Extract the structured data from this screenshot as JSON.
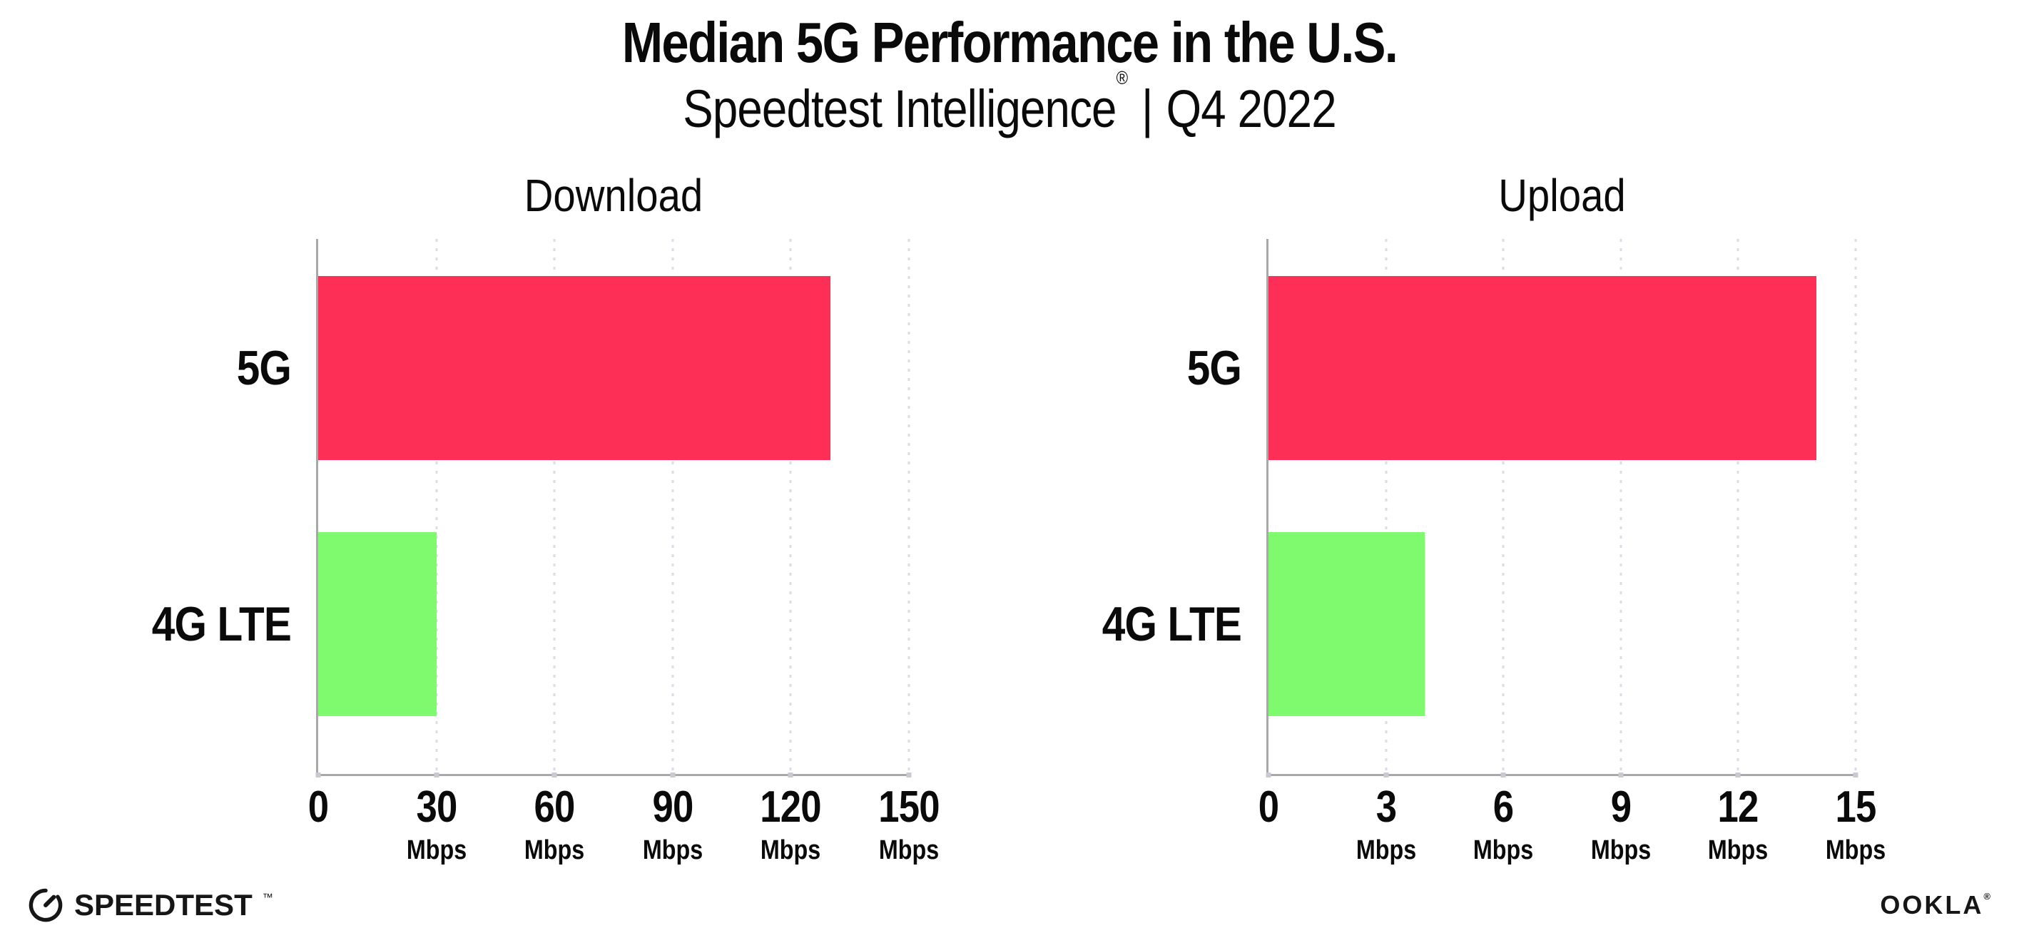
{
  "header": {
    "title": "Median 5G Performance in the U.S.",
    "subtitle_brand": "Speedtest Intelligence",
    "subtitle_reg": "®",
    "subtitle_separator": "|",
    "subtitle_period": "Q4 2022"
  },
  "chart_data": [
    {
      "type": "bar",
      "orientation": "horizontal",
      "title": "Download",
      "categories": [
        "5G",
        "4G LTE"
      ],
      "values": [
        130,
        30
      ],
      "unit": "Mbps",
      "xlim": [
        0,
        150
      ],
      "xticks": [
        0,
        30,
        60,
        90,
        120,
        150
      ],
      "bar_colors": [
        "#FD2F57",
        "#7FF96D"
      ],
      "gridlines": "dotted-vertical",
      "legend": "none"
    },
    {
      "type": "bar",
      "orientation": "horizontal",
      "title": "Upload",
      "categories": [
        "5G",
        "4G LTE"
      ],
      "values": [
        14,
        4
      ],
      "unit": "Mbps",
      "xlim": [
        0,
        15
      ],
      "xticks": [
        0,
        3,
        6,
        9,
        12,
        15
      ],
      "bar_colors": [
        "#FD2F57",
        "#7FF96D"
      ],
      "gridlines": "dotted-vertical",
      "legend": "none"
    }
  ],
  "footer": {
    "speedtest_label": "SPEEDTEST",
    "speedtest_tm": "™",
    "speedtest_icon": "gauge-icon",
    "ookla_label": "OOKLA",
    "ookla_reg": "®"
  },
  "colors": {
    "bar_5g": "#FD2F57",
    "bar_4g_lte": "#7FF96D",
    "axis": "#A8A8A8",
    "gridline": "#DCDCE6",
    "text": "#0A0A0A",
    "background": "#FFFFFF"
  }
}
